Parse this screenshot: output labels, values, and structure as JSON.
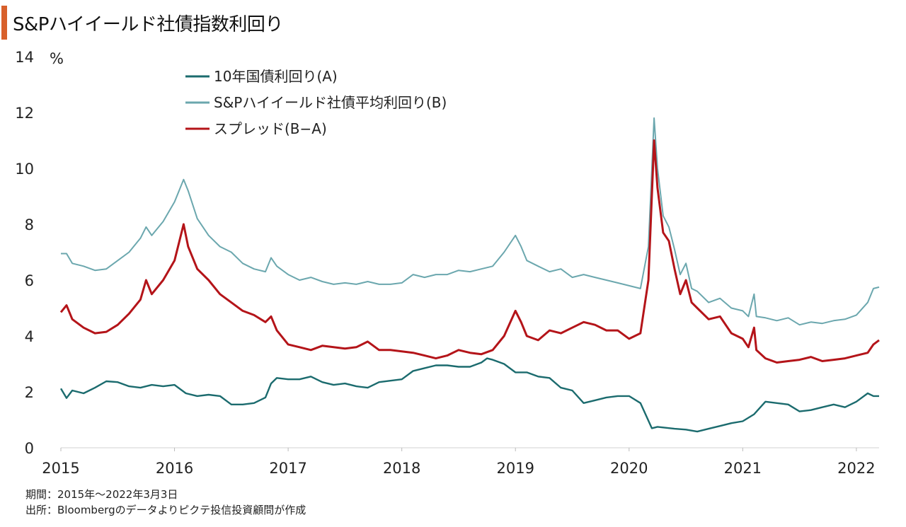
{
  "colors": {
    "accent_bar": "#d8602b",
    "series_a": "#1b6b6e",
    "series_b": "#6ba7ae",
    "series_spread": "#b41419"
  },
  "header": {
    "title": "S&Pハイイールド社債指数利回り"
  },
  "footer": {
    "period": "期間：2015年～2022年3月3日",
    "source": "出所：Bloombergのデータよりピクテ投信投資顧問が作成"
  },
  "chart_data": {
    "type": "line",
    "ylabel": "%",
    "ylim": [
      0,
      14
    ],
    "yticks": [
      0,
      2,
      4,
      6,
      8,
      10,
      12,
      14
    ],
    "xlim": [
      2015.0,
      2022.2
    ],
    "xticks": [
      2015,
      2016,
      2017,
      2018,
      2019,
      2020,
      2021,
      2022
    ],
    "grid": false,
    "legend": "top-left",
    "series": [
      {
        "name": "10年国債利回り(A)",
        "color": "#1b6b6e",
        "points": [
          [
            2015.0,
            2.12
          ],
          [
            2015.05,
            1.78
          ],
          [
            2015.1,
            2.05
          ],
          [
            2015.2,
            1.95
          ],
          [
            2015.3,
            2.15
          ],
          [
            2015.4,
            2.38
          ],
          [
            2015.5,
            2.35
          ],
          [
            2015.6,
            2.2
          ],
          [
            2015.7,
            2.15
          ],
          [
            2015.8,
            2.25
          ],
          [
            2015.9,
            2.2
          ],
          [
            2016.0,
            2.25
          ],
          [
            2016.1,
            1.95
          ],
          [
            2016.2,
            1.85
          ],
          [
            2016.3,
            1.9
          ],
          [
            2016.4,
            1.85
          ],
          [
            2016.5,
            1.55
          ],
          [
            2016.6,
            1.55
          ],
          [
            2016.7,
            1.6
          ],
          [
            2016.8,
            1.8
          ],
          [
            2016.85,
            2.3
          ],
          [
            2016.9,
            2.5
          ],
          [
            2017.0,
            2.45
          ],
          [
            2017.1,
            2.45
          ],
          [
            2017.2,
            2.55
          ],
          [
            2017.3,
            2.35
          ],
          [
            2017.4,
            2.25
          ],
          [
            2017.5,
            2.3
          ],
          [
            2017.6,
            2.2
          ],
          [
            2017.7,
            2.15
          ],
          [
            2017.8,
            2.35
          ],
          [
            2017.9,
            2.4
          ],
          [
            2018.0,
            2.45
          ],
          [
            2018.1,
            2.75
          ],
          [
            2018.2,
            2.85
          ],
          [
            2018.3,
            2.95
          ],
          [
            2018.4,
            2.95
          ],
          [
            2018.5,
            2.9
          ],
          [
            2018.6,
            2.9
          ],
          [
            2018.7,
            3.05
          ],
          [
            2018.75,
            3.2
          ],
          [
            2018.8,
            3.15
          ],
          [
            2018.9,
            3.0
          ],
          [
            2019.0,
            2.7
          ],
          [
            2019.1,
            2.7
          ],
          [
            2019.2,
            2.55
          ],
          [
            2019.3,
            2.5
          ],
          [
            2019.4,
            2.15
          ],
          [
            2019.5,
            2.05
          ],
          [
            2019.6,
            1.6
          ],
          [
            2019.7,
            1.7
          ],
          [
            2019.8,
            1.8
          ],
          [
            2019.9,
            1.85
          ],
          [
            2020.0,
            1.85
          ],
          [
            2020.1,
            1.6
          ],
          [
            2020.15,
            1.15
          ],
          [
            2020.2,
            0.7
          ],
          [
            2020.25,
            0.75
          ],
          [
            2020.4,
            0.68
          ],
          [
            2020.5,
            0.65
          ],
          [
            2020.6,
            0.58
          ],
          [
            2020.7,
            0.68
          ],
          [
            2020.8,
            0.78
          ],
          [
            2020.9,
            0.88
          ],
          [
            2021.0,
            0.95
          ],
          [
            2021.1,
            1.2
          ],
          [
            2021.2,
            1.65
          ],
          [
            2021.3,
            1.6
          ],
          [
            2021.4,
            1.55
          ],
          [
            2021.5,
            1.3
          ],
          [
            2021.6,
            1.35
          ],
          [
            2021.7,
            1.45
          ],
          [
            2021.8,
            1.55
          ],
          [
            2021.9,
            1.45
          ],
          [
            2022.0,
            1.65
          ],
          [
            2022.1,
            1.95
          ],
          [
            2022.15,
            1.85
          ],
          [
            2022.2,
            1.85
          ]
        ]
      },
      {
        "name": "S&Pハイイールド社債平均利回り(B)",
        "color": "#6ba7ae",
        "points": [
          [
            2015.0,
            6.95
          ],
          [
            2015.05,
            6.95
          ],
          [
            2015.1,
            6.6
          ],
          [
            2015.2,
            6.5
          ],
          [
            2015.3,
            6.35
          ],
          [
            2015.4,
            6.4
          ],
          [
            2015.5,
            6.7
          ],
          [
            2015.6,
            7.0
          ],
          [
            2015.7,
            7.5
          ],
          [
            2015.75,
            7.9
          ],
          [
            2015.8,
            7.6
          ],
          [
            2015.9,
            8.1
          ],
          [
            2016.0,
            8.8
          ],
          [
            2016.08,
            9.6
          ],
          [
            2016.12,
            9.2
          ],
          [
            2016.2,
            8.2
          ],
          [
            2016.3,
            7.6
          ],
          [
            2016.4,
            7.2
          ],
          [
            2016.5,
            7.0
          ],
          [
            2016.6,
            6.6
          ],
          [
            2016.7,
            6.4
          ],
          [
            2016.8,
            6.3
          ],
          [
            2016.85,
            6.8
          ],
          [
            2016.9,
            6.5
          ],
          [
            2017.0,
            6.2
          ],
          [
            2017.1,
            6.0
          ],
          [
            2017.2,
            6.1
          ],
          [
            2017.3,
            5.95
          ],
          [
            2017.4,
            5.85
          ],
          [
            2017.5,
            5.9
          ],
          [
            2017.6,
            5.85
          ],
          [
            2017.7,
            5.95
          ],
          [
            2017.8,
            5.85
          ],
          [
            2017.9,
            5.85
          ],
          [
            2018.0,
            5.9
          ],
          [
            2018.1,
            6.2
          ],
          [
            2018.2,
            6.1
          ],
          [
            2018.3,
            6.2
          ],
          [
            2018.4,
            6.2
          ],
          [
            2018.5,
            6.35
          ],
          [
            2018.6,
            6.3
          ],
          [
            2018.7,
            6.4
          ],
          [
            2018.8,
            6.5
          ],
          [
            2018.9,
            7.0
          ],
          [
            2019.0,
            7.6
          ],
          [
            2019.05,
            7.2
          ],
          [
            2019.1,
            6.7
          ],
          [
            2019.2,
            6.5
          ],
          [
            2019.3,
            6.3
          ],
          [
            2019.4,
            6.4
          ],
          [
            2019.5,
            6.1
          ],
          [
            2019.6,
            6.2
          ],
          [
            2019.7,
            6.1
          ],
          [
            2019.8,
            6.0
          ],
          [
            2019.9,
            5.9
          ],
          [
            2020.0,
            5.8
          ],
          [
            2020.1,
            5.7
          ],
          [
            2020.17,
            7.2
          ],
          [
            2020.22,
            11.8
          ],
          [
            2020.25,
            10.0
          ],
          [
            2020.3,
            8.3
          ],
          [
            2020.35,
            7.9
          ],
          [
            2020.4,
            7.1
          ],
          [
            2020.45,
            6.2
          ],
          [
            2020.5,
            6.6
          ],
          [
            2020.55,
            5.7
          ],
          [
            2020.6,
            5.6
          ],
          [
            2020.7,
            5.2
          ],
          [
            2020.8,
            5.35
          ],
          [
            2020.9,
            5.0
          ],
          [
            2021.0,
            4.9
          ],
          [
            2021.05,
            4.7
          ],
          [
            2021.1,
            5.5
          ],
          [
            2021.12,
            4.7
          ],
          [
            2021.2,
            4.65
          ],
          [
            2021.3,
            4.55
          ],
          [
            2021.4,
            4.65
          ],
          [
            2021.5,
            4.4
          ],
          [
            2021.6,
            4.5
          ],
          [
            2021.7,
            4.45
          ],
          [
            2021.8,
            4.55
          ],
          [
            2021.9,
            4.6
          ],
          [
            2022.0,
            4.75
          ],
          [
            2022.1,
            5.2
          ],
          [
            2022.15,
            5.7
          ],
          [
            2022.2,
            5.75
          ]
        ]
      },
      {
        "name": "スプレッド(B−A)",
        "color": "#b41419",
        "points": [
          [
            2015.0,
            4.85
          ],
          [
            2015.05,
            5.1
          ],
          [
            2015.1,
            4.6
          ],
          [
            2015.2,
            4.3
          ],
          [
            2015.3,
            4.1
          ],
          [
            2015.4,
            4.15
          ],
          [
            2015.5,
            4.4
          ],
          [
            2015.6,
            4.8
          ],
          [
            2015.7,
            5.3
          ],
          [
            2015.75,
            6.0
          ],
          [
            2015.8,
            5.5
          ],
          [
            2015.9,
            6.0
          ],
          [
            2016.0,
            6.7
          ],
          [
            2016.08,
            8.0
          ],
          [
            2016.12,
            7.2
          ],
          [
            2016.2,
            6.4
          ],
          [
            2016.3,
            6.0
          ],
          [
            2016.4,
            5.5
          ],
          [
            2016.5,
            5.2
          ],
          [
            2016.6,
            4.9
          ],
          [
            2016.7,
            4.75
          ],
          [
            2016.8,
            4.5
          ],
          [
            2016.85,
            4.7
          ],
          [
            2016.9,
            4.2
          ],
          [
            2017.0,
            3.7
          ],
          [
            2017.1,
            3.6
          ],
          [
            2017.2,
            3.5
          ],
          [
            2017.3,
            3.65
          ],
          [
            2017.4,
            3.6
          ],
          [
            2017.5,
            3.55
          ],
          [
            2017.6,
            3.6
          ],
          [
            2017.7,
            3.8
          ],
          [
            2017.8,
            3.5
          ],
          [
            2017.9,
            3.5
          ],
          [
            2018.0,
            3.45
          ],
          [
            2018.1,
            3.4
          ],
          [
            2018.2,
            3.3
          ],
          [
            2018.3,
            3.2
          ],
          [
            2018.4,
            3.3
          ],
          [
            2018.5,
            3.5
          ],
          [
            2018.6,
            3.4
          ],
          [
            2018.7,
            3.35
          ],
          [
            2018.8,
            3.5
          ],
          [
            2018.9,
            4.0
          ],
          [
            2019.0,
            4.9
          ],
          [
            2019.05,
            4.5
          ],
          [
            2019.1,
            4.0
          ],
          [
            2019.2,
            3.85
          ],
          [
            2019.3,
            4.2
          ],
          [
            2019.4,
            4.1
          ],
          [
            2019.5,
            4.3
          ],
          [
            2019.6,
            4.5
          ],
          [
            2019.7,
            4.4
          ],
          [
            2019.8,
            4.2
          ],
          [
            2019.9,
            4.2
          ],
          [
            2020.0,
            3.9
          ],
          [
            2020.1,
            4.1
          ],
          [
            2020.17,
            6.0
          ],
          [
            2020.22,
            11.0
          ],
          [
            2020.25,
            9.3
          ],
          [
            2020.3,
            7.7
          ],
          [
            2020.35,
            7.4
          ],
          [
            2020.4,
            6.4
          ],
          [
            2020.45,
            5.5
          ],
          [
            2020.5,
            6.0
          ],
          [
            2020.55,
            5.2
          ],
          [
            2020.6,
            5.0
          ],
          [
            2020.7,
            4.6
          ],
          [
            2020.8,
            4.7
          ],
          [
            2020.9,
            4.1
          ],
          [
            2021.0,
            3.9
          ],
          [
            2021.05,
            3.6
          ],
          [
            2021.1,
            4.3
          ],
          [
            2021.12,
            3.5
          ],
          [
            2021.2,
            3.2
          ],
          [
            2021.3,
            3.05
          ],
          [
            2021.4,
            3.1
          ],
          [
            2021.5,
            3.15
          ],
          [
            2021.6,
            3.25
          ],
          [
            2021.7,
            3.1
          ],
          [
            2021.8,
            3.15
          ],
          [
            2021.9,
            3.2
          ],
          [
            2022.0,
            3.3
          ],
          [
            2022.1,
            3.4
          ],
          [
            2022.15,
            3.7
          ],
          [
            2022.2,
            3.85
          ]
        ]
      }
    ]
  }
}
